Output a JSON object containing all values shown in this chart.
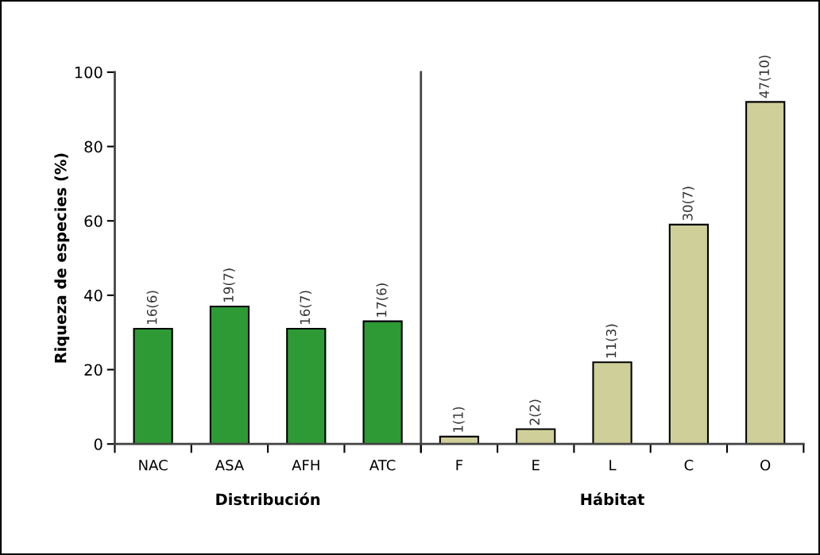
{
  "chart_data": [
    {
      "type": "bar",
      "xlabel": "Distribución",
      "ylabel": "Riqueza de especies (%)",
      "categories": [
        "NAC",
        "ASA",
        "AFH",
        "ATC"
      ],
      "values": [
        31,
        37,
        31,
        33
      ],
      "color": "#2e9a36",
      "annotations": [
        {
          "text": "16(6)",
          "x": "NAC",
          "y": 31
        },
        {
          "text": "19(7)",
          "x": "ASA",
          "y": 37
        },
        {
          "text": "16(7)",
          "x": "AFH",
          "y": 31
        },
        {
          "text": "17(6)",
          "x": "ATC",
          "y": 33
        }
      ],
      "ylim": [
        0,
        100
      ],
      "yticks": [
        0,
        20,
        40,
        60,
        80,
        100
      ],
      "grid": false
    },
    {
      "type": "bar",
      "xlabel": "Hábitat",
      "categories": [
        "F",
        "E",
        "L",
        "C",
        "O"
      ],
      "values": [
        2,
        4,
        22,
        59,
        92
      ],
      "color": "#cfcf9a",
      "annotations": [
        {
          "text": "1(1)",
          "x": "F",
          "y": 2
        },
        {
          "text": "2(2)",
          "x": "E",
          "y": 4
        },
        {
          "text": "11(3)",
          "x": "L",
          "y": 22
        },
        {
          "text": "30(7)",
          "x": "C",
          "y": 59
        },
        {
          "text": "47(10)",
          "x": "O",
          "y": 92
        }
      ],
      "ylim": [
        0,
        100
      ],
      "yticks": [
        0,
        20,
        40,
        60,
        80,
        100
      ],
      "tick_labels": "x",
      "grid": false
    }
  ]
}
